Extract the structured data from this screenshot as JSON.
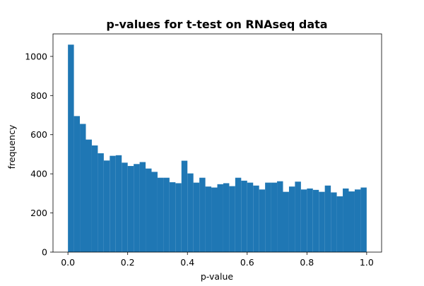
{
  "chart_data": {
    "type": "bar",
    "title": "p-values for t-test on RNAseq data",
    "xlabel": "p-value",
    "ylabel": "frequency",
    "xlim": [
      -0.05,
      1.05
    ],
    "ylim": [
      0,
      1115
    ],
    "xticks": [
      0.0,
      0.2,
      0.4,
      0.6,
      0.8,
      1.0
    ],
    "xtick_labels": [
      "0.0",
      "0.2",
      "0.4",
      "0.6",
      "0.8",
      "1.0"
    ],
    "yticks": [
      0,
      200,
      400,
      600,
      800,
      1000
    ],
    "ytick_labels": [
      "0",
      "200",
      "400",
      "600",
      "800",
      "1000"
    ],
    "bar_color": "#1f77b4",
    "grid": false,
    "bin_edges": [
      0.0,
      0.02,
      0.04,
      0.06,
      0.08,
      0.1,
      0.12,
      0.14,
      0.16,
      0.18,
      0.2,
      0.22,
      0.24,
      0.26,
      0.28,
      0.3,
      0.32,
      0.34,
      0.36,
      0.38,
      0.4,
      0.42,
      0.44,
      0.46,
      0.48,
      0.5,
      0.52,
      0.54,
      0.56,
      0.58,
      0.6,
      0.62,
      0.64,
      0.66,
      0.68,
      0.7,
      0.72,
      0.74,
      0.76,
      0.78,
      0.8,
      0.82,
      0.84,
      0.86,
      0.88,
      0.9,
      0.92,
      0.94,
      0.96,
      0.98,
      1.0
    ],
    "values": [
      1060,
      695,
      655,
      575,
      545,
      505,
      468,
      492,
      495,
      457,
      440,
      450,
      460,
      427,
      410,
      380,
      380,
      357,
      352,
      467,
      402,
      355,
      380,
      335,
      330,
      347,
      352,
      337,
      380,
      365,
      355,
      340,
      320,
      355,
      355,
      362,
      308,
      335,
      360,
      320,
      325,
      318,
      308,
      340,
      305,
      285,
      325,
      310,
      320,
      330
    ]
  }
}
